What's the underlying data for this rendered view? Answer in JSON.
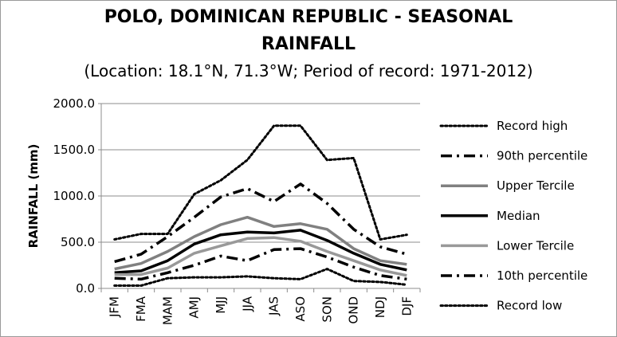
{
  "chart_data": {
    "type": "line",
    "title_line1": "POLO, DOMINICAN REPUBLIC - SEASONAL",
    "title_line2": "RAINFALL",
    "subtitle": "(Location: 18.1°N, 71.3°W; Period of record: 1971-2012)",
    "ylabel": "RAINFALL (mm)",
    "xlabel": "",
    "ylim": [
      0,
      2000
    ],
    "yticks": [
      "0.0",
      "500.0",
      "1000.0",
      "1500.0",
      "2000.0"
    ],
    "ytick_values": [
      0,
      500,
      1000,
      1500,
      2000
    ],
    "categories": [
      "JFM",
      "FMA",
      "MAM",
      "AMJ",
      "MJJ",
      "JJA",
      "JAS",
      "ASO",
      "SON",
      "OND",
      "NDJ",
      "DJF"
    ],
    "grid": "horizontal",
    "legend_position": "right",
    "series": [
      {
        "name": "Record high",
        "style": "dotted",
        "color": "#000000",
        "values": [
          530,
          590,
          590,
          1020,
          1170,
          1390,
          1760,
          1760,
          1390,
          1410,
          530,
          580
        ]
      },
      {
        "name": "90th percentile",
        "style": "dashdot",
        "color": "#000000",
        "values": [
          290,
          370,
          560,
          770,
          990,
          1080,
          940,
          1130,
          920,
          640,
          450,
          370
        ]
      },
      {
        "name": "Upper Tercile",
        "style": "solid",
        "color": "#808080",
        "values": [
          210,
          270,
          400,
          560,
          690,
          770,
          670,
          700,
          640,
          430,
          300,
          260
        ]
      },
      {
        "name": "Median",
        "style": "solid",
        "color": "#000000",
        "values": [
          170,
          190,
          300,
          480,
          580,
          610,
          600,
          630,
          520,
          380,
          260,
          200
        ]
      },
      {
        "name": "Lower Tercile",
        "style": "solid",
        "color": "#999999",
        "values": [
          150,
          150,
          220,
          380,
          460,
          540,
          550,
          510,
          400,
          300,
          200,
          140
        ]
      },
      {
        "name": "10th percentile",
        "style": "dashdot",
        "color": "#000000",
        "values": [
          110,
          100,
          170,
          250,
          350,
          300,
          420,
          430,
          340,
          230,
          140,
          100
        ]
      },
      {
        "name": "Record low",
        "style": "dotted",
        "color": "#000000",
        "values": [
          30,
          30,
          110,
          120,
          120,
          130,
          110,
          100,
          210,
          80,
          70,
          40
        ]
      }
    ]
  }
}
